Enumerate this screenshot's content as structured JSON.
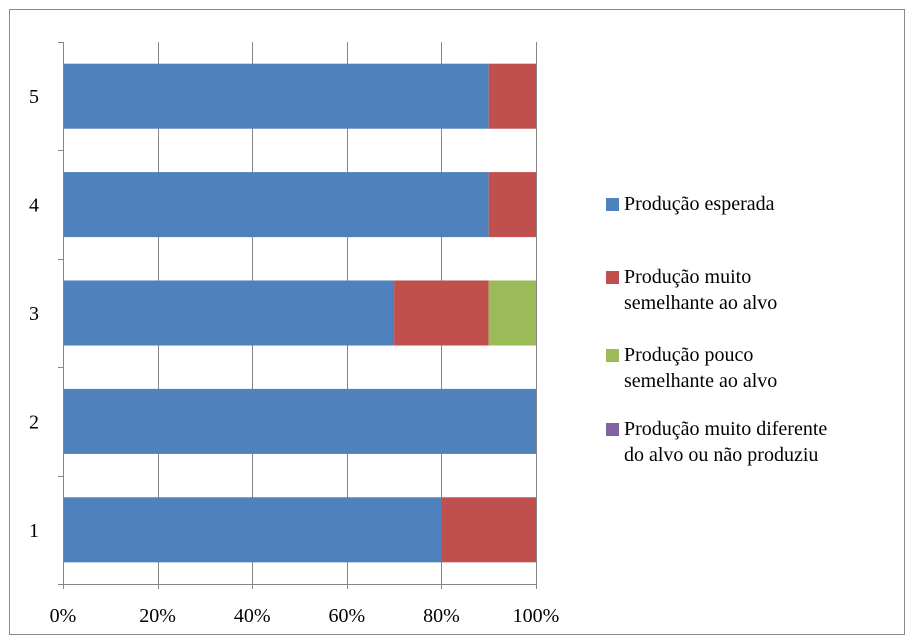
{
  "chart_data": {
    "type": "bar",
    "orientation": "horizontal",
    "stacking": "percent",
    "categories": [
      "1",
      "2",
      "3",
      "4",
      "5"
    ],
    "series": [
      {
        "name": "Produção esperada",
        "color": "#4F81BD",
        "values": [
          80,
          100,
          70,
          90,
          90
        ]
      },
      {
        "name": "Produção muito\nsemelhante ao alvo",
        "color": "#C0504D",
        "values": [
          20,
          0,
          20,
          10,
          10
        ]
      },
      {
        "name": "Produção pouco\nsemelhante ao alvo",
        "color": "#9BBB59",
        "values": [
          0,
          0,
          10,
          0,
          0
        ]
      },
      {
        "name": "Produção muito diferente\ndo alvo ou não produziu",
        "color": "#8064A2",
        "values": [
          0,
          0,
          0,
          0,
          0
        ]
      }
    ],
    "x_ticks": [
      "0%",
      "20%",
      "40%",
      "60%",
      "80%",
      "100%"
    ],
    "xlim": [
      0,
      100
    ],
    "grid": "vertical",
    "legend_position": "right",
    "title": "",
    "xlabel": "",
    "ylabel": ""
  }
}
